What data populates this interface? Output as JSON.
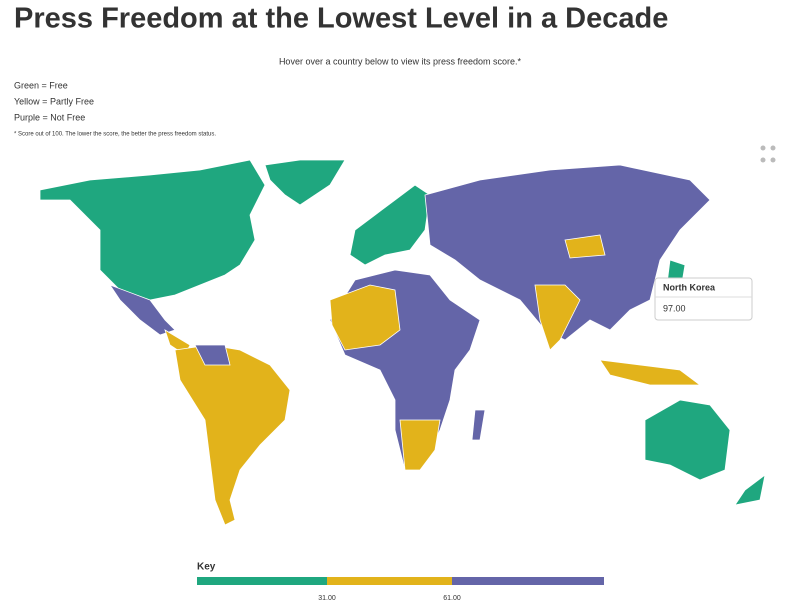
{
  "header": {
    "title": "Press Freedom at the Lowest Level in a Decade",
    "subtitle": "Hover over a country below to view its press freedom score.*"
  },
  "legend": [
    "Green = Free",
    "Yellow = Partly Free",
    "Purple = Not Free"
  ],
  "note": "* Score out of 100. The lower the score, the better the press freedom status.",
  "tooltip": {
    "country": "North Korea",
    "score": "97.00"
  },
  "key": {
    "title": "Key",
    "ticks": [
      "31.00",
      "61.00"
    ]
  }
}
